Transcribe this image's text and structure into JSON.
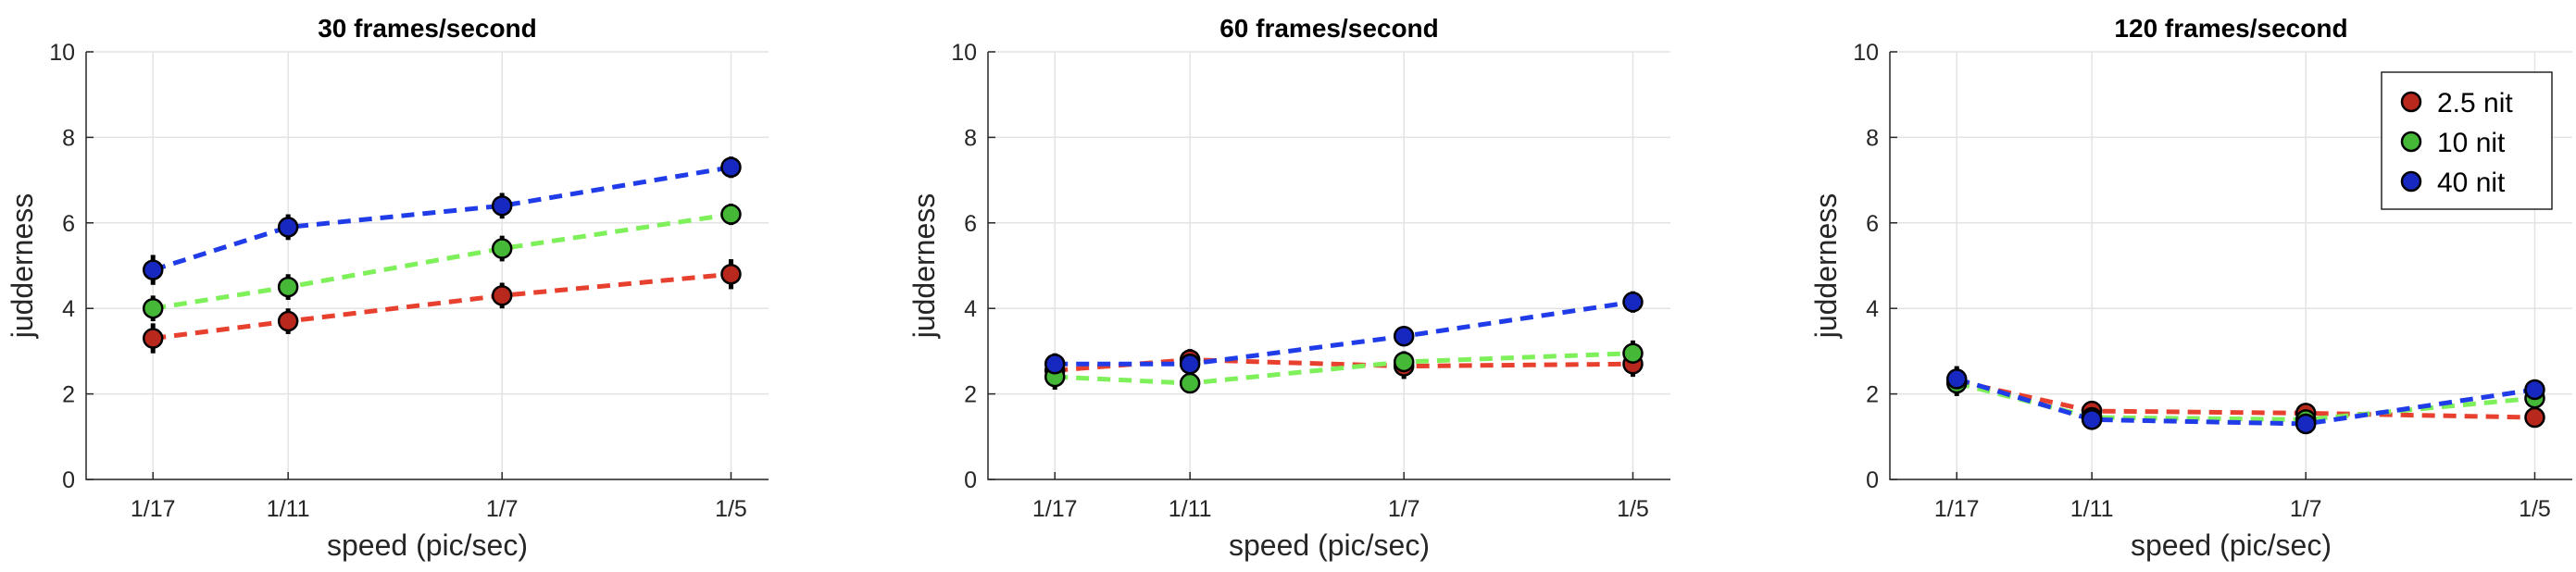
{
  "chart_data": [
    {
      "type": "line",
      "title": "30 frames/second",
      "xlabel": "speed (pic/sec)",
      "ylabel": "judderness",
      "categories": [
        "1/17",
        "1/11",
        "1/7",
        "1/5"
      ],
      "ylim": [
        0,
        10
      ],
      "yticks": [
        "0",
        "2",
        "4",
        "6",
        "8",
        "10"
      ],
      "grid": true,
      "series": [
        {
          "name": "2.5 nit",
          "values": [
            3.3,
            3.7,
            4.3,
            4.8
          ],
          "err": [
            0.35,
            0.3,
            0.3,
            0.35
          ]
        },
        {
          "name": "10 nit",
          "values": [
            4.0,
            4.5,
            5.4,
            6.2
          ],
          "err": [
            0.3,
            0.3,
            0.3,
            0.25
          ]
        },
        {
          "name": "40 nit",
          "values": [
            4.9,
            5.9,
            6.4,
            7.3
          ],
          "err": [
            0.35,
            0.3,
            0.3,
            0.25
          ]
        }
      ]
    },
    {
      "type": "line",
      "title": "60 frames/second",
      "xlabel": "speed (pic/sec)",
      "ylabel": "judderness",
      "categories": [
        "1/17",
        "1/11",
        "1/7",
        "1/5"
      ],
      "ylim": [
        0,
        10
      ],
      "yticks": [
        "0",
        "2",
        "4",
        "6",
        "8",
        "10"
      ],
      "grid": true,
      "series": [
        {
          "name": "2.5 nit",
          "values": [
            2.55,
            2.8,
            2.65,
            2.7
          ],
          "err": [
            0.3,
            0.25,
            0.3,
            0.3
          ]
        },
        {
          "name": "10 nit",
          "values": [
            2.4,
            2.25,
            2.75,
            2.95
          ],
          "err": [
            0.3,
            0.2,
            0.25,
            0.3
          ]
        },
        {
          "name": "40 nit",
          "values": [
            2.7,
            2.7,
            3.35,
            4.15
          ],
          "err": [
            0.25,
            0.2,
            0.2,
            0.25
          ]
        }
      ]
    },
    {
      "type": "line",
      "title": "120 frames/second",
      "xlabel": "speed (pic/sec)",
      "ylabel": "judderness",
      "categories": [
        "1/17",
        "1/11",
        "1/7",
        "1/5"
      ],
      "ylim": [
        0,
        10
      ],
      "yticks": [
        "0",
        "2",
        "4",
        "6",
        "8",
        "10"
      ],
      "grid": true,
      "legend": "top-right",
      "series": [
        {
          "name": "2.5 nit",
          "values": [
            2.3,
            1.6,
            1.55,
            1.45
          ],
          "err": [
            0.3,
            0.15,
            0.15,
            0.15
          ]
        },
        {
          "name": "10 nit",
          "values": [
            2.25,
            1.45,
            1.4,
            1.9
          ],
          "err": [
            0.3,
            0.15,
            0.15,
            0.2
          ]
        },
        {
          "name": "40 nit",
          "values": [
            2.35,
            1.4,
            1.3,
            2.1
          ],
          "err": [
            0.3,
            0.15,
            0.15,
            0.2
          ]
        }
      ]
    }
  ],
  "colors": {
    "2.5 nit": {
      "line": "#e8402e",
      "marker": "#b8281d"
    },
    "10 nit": {
      "line": "#7ef05a",
      "marker": "#46b838"
    },
    "40 nit": {
      "line": "#1f3ce8",
      "marker": "#1628c0"
    }
  }
}
